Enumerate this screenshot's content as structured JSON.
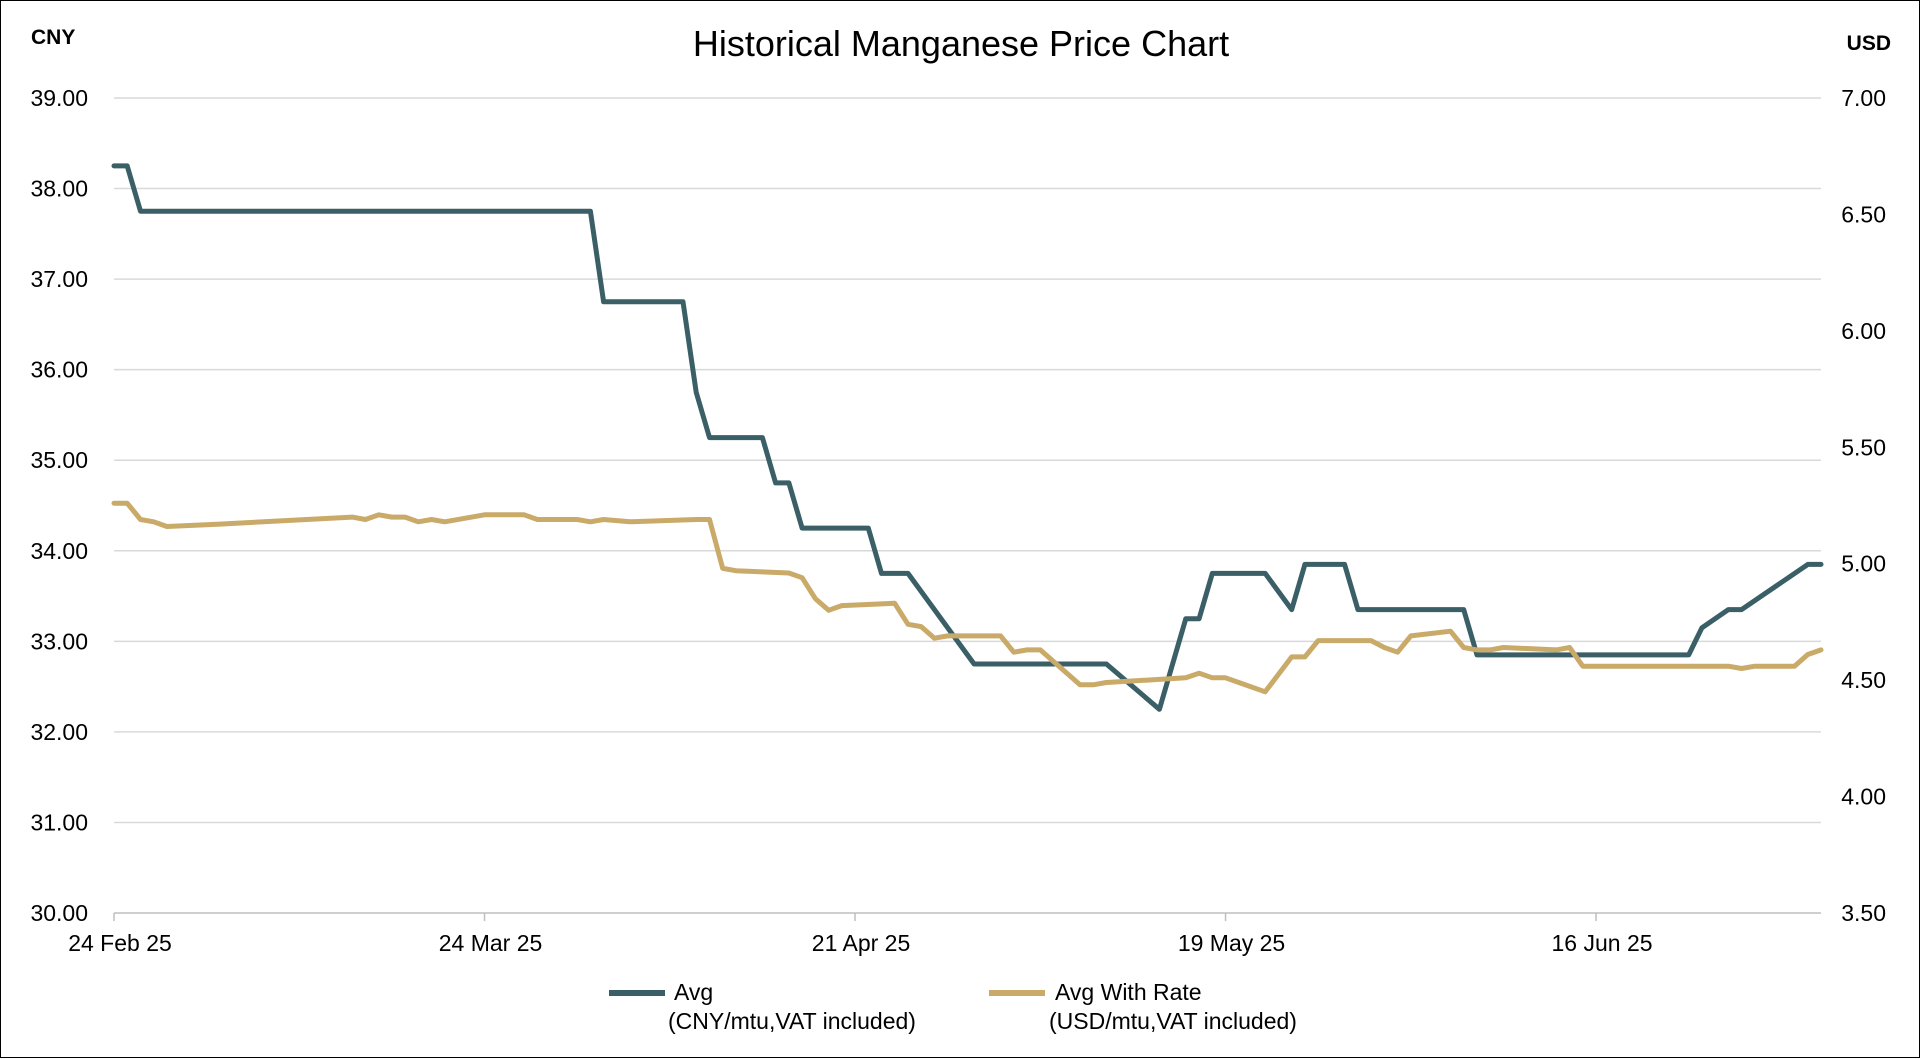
{
  "chart_data": {
    "type": "line",
    "title": "Historical Manganese Price Chart",
    "left_axis_unit": "CNY",
    "right_axis_unit": "USD",
    "x_ticks": [
      "24 Feb 25",
      "24 Mar 25",
      "21 Apr 25",
      "19 May 25",
      "16 Jun 25"
    ],
    "x_range": [
      "2025-02-24",
      "2025-07-03"
    ],
    "y_left": {
      "range": [
        30,
        39
      ],
      "ticks": [
        "30.00",
        "31.00",
        "32.00",
        "33.00",
        "34.00",
        "35.00",
        "36.00",
        "37.00",
        "38.00",
        "39.00"
      ]
    },
    "y_right": {
      "range": [
        3.5,
        7.0
      ],
      "ticks": [
        "3.50",
        "4.00",
        "4.50",
        "5.00",
        "5.50",
        "6.00",
        "6.50",
        "7.00"
      ]
    },
    "grid": true,
    "legend_position": "bottom",
    "series": [
      {
        "name": "Avg",
        "subtitle": "(CNY/mtu,VAT included)",
        "axis": "left",
        "color": "#3a5f66",
        "points": [
          [
            "2025-02-24",
            38.25
          ],
          [
            "2025-02-25",
            38.25
          ],
          [
            "2025-02-26",
            37.75
          ],
          [
            "2025-04-01",
            37.75
          ],
          [
            "2025-04-02",
            36.75
          ],
          [
            "2025-04-08",
            36.75
          ],
          [
            "2025-04-09",
            35.75
          ],
          [
            "2025-04-10",
            35.25
          ],
          [
            "2025-04-14",
            35.25
          ],
          [
            "2025-04-15",
            34.75
          ],
          [
            "2025-04-16",
            34.75
          ],
          [
            "2025-04-17",
            34.25
          ],
          [
            "2025-04-22",
            34.25
          ],
          [
            "2025-04-23",
            33.75
          ],
          [
            "2025-04-25",
            33.75
          ],
          [
            "2025-04-30",
            32.75
          ],
          [
            "2025-05-10",
            32.75
          ],
          [
            "2025-05-14",
            32.25
          ],
          [
            "2025-05-16",
            33.25
          ],
          [
            "2025-05-17",
            33.25
          ],
          [
            "2025-05-18",
            33.75
          ],
          [
            "2025-05-22",
            33.75
          ],
          [
            "2025-05-24",
            33.35
          ],
          [
            "2025-05-25",
            33.85
          ],
          [
            "2025-05-28",
            33.85
          ],
          [
            "2025-05-29",
            33.35
          ],
          [
            "2025-06-06",
            33.35
          ],
          [
            "2025-06-07",
            32.85
          ],
          [
            "2025-06-23",
            32.85
          ],
          [
            "2025-06-24",
            33.15
          ],
          [
            "2025-06-26",
            33.35
          ],
          [
            "2025-06-27",
            33.35
          ],
          [
            "2025-07-02",
            33.85
          ],
          [
            "2025-07-03",
            33.85
          ]
        ]
      },
      {
        "name": "Avg With Rate",
        "subtitle": "(USD/mtu,VAT included)",
        "axis": "right",
        "color": "#c9aa68",
        "points": [
          [
            "2025-02-24",
            5.26
          ],
          [
            "2025-02-25",
            5.26
          ],
          [
            "2025-02-26",
            5.19
          ],
          [
            "2025-02-27",
            5.18
          ],
          [
            "2025-02-28",
            5.16
          ],
          [
            "2025-03-04",
            5.17
          ],
          [
            "2025-03-14",
            5.2
          ],
          [
            "2025-03-15",
            5.19
          ],
          [
            "2025-03-16",
            5.21
          ],
          [
            "2025-03-17",
            5.2
          ],
          [
            "2025-03-18",
            5.2
          ],
          [
            "2025-03-19",
            5.18
          ],
          [
            "2025-03-20",
            5.19
          ],
          [
            "2025-03-21",
            5.18
          ],
          [
            "2025-03-24",
            5.21
          ],
          [
            "2025-03-27",
            5.21
          ],
          [
            "2025-03-28",
            5.19
          ],
          [
            "2025-03-31",
            5.19
          ],
          [
            "2025-04-01",
            5.18
          ],
          [
            "2025-04-02",
            5.19
          ],
          [
            "2025-04-04",
            5.18
          ],
          [
            "2025-04-09",
            5.19
          ],
          [
            "2025-04-10",
            5.19
          ],
          [
            "2025-04-11",
            4.98
          ],
          [
            "2025-04-12",
            4.97
          ],
          [
            "2025-04-16",
            4.96
          ],
          [
            "2025-04-17",
            4.94
          ],
          [
            "2025-04-18",
            4.85
          ],
          [
            "2025-04-19",
            4.8
          ],
          [
            "2025-04-20",
            4.82
          ],
          [
            "2025-04-24",
            4.83
          ],
          [
            "2025-04-25",
            4.74
          ],
          [
            "2025-04-26",
            4.73
          ],
          [
            "2025-04-27",
            4.68
          ],
          [
            "2025-04-28",
            4.69
          ],
          [
            "2025-05-02",
            4.69
          ],
          [
            "2025-05-03",
            4.62
          ],
          [
            "2025-05-04",
            4.63
          ],
          [
            "2025-05-05",
            4.63
          ],
          [
            "2025-05-08",
            4.48
          ],
          [
            "2025-05-09",
            4.48
          ],
          [
            "2025-05-10",
            4.49
          ],
          [
            "2025-05-16",
            4.51
          ],
          [
            "2025-05-17",
            4.53
          ],
          [
            "2025-05-18",
            4.51
          ],
          [
            "2025-05-19",
            4.51
          ],
          [
            "2025-05-20",
            4.49
          ],
          [
            "2025-05-22",
            4.45
          ],
          [
            "2025-05-24",
            4.6
          ],
          [
            "2025-05-25",
            4.6
          ],
          [
            "2025-05-26",
            4.67
          ],
          [
            "2025-05-30",
            4.67
          ],
          [
            "2025-05-31",
            4.64
          ],
          [
            "2025-06-01",
            4.62
          ],
          [
            "2025-06-02",
            4.69
          ],
          [
            "2025-06-05",
            4.71
          ],
          [
            "2025-06-06",
            4.64
          ],
          [
            "2025-06-07",
            4.63
          ],
          [
            "2025-06-08",
            4.63
          ],
          [
            "2025-06-09",
            4.64
          ],
          [
            "2025-06-13",
            4.63
          ],
          [
            "2025-06-14",
            4.64
          ],
          [
            "2025-06-15",
            4.56
          ],
          [
            "2025-06-26",
            4.56
          ],
          [
            "2025-06-27",
            4.55
          ],
          [
            "2025-06-28",
            4.56
          ],
          [
            "2025-07-01",
            4.56
          ],
          [
            "2025-07-02",
            4.61
          ],
          [
            "2025-07-03",
            4.63
          ]
        ]
      }
    ]
  }
}
